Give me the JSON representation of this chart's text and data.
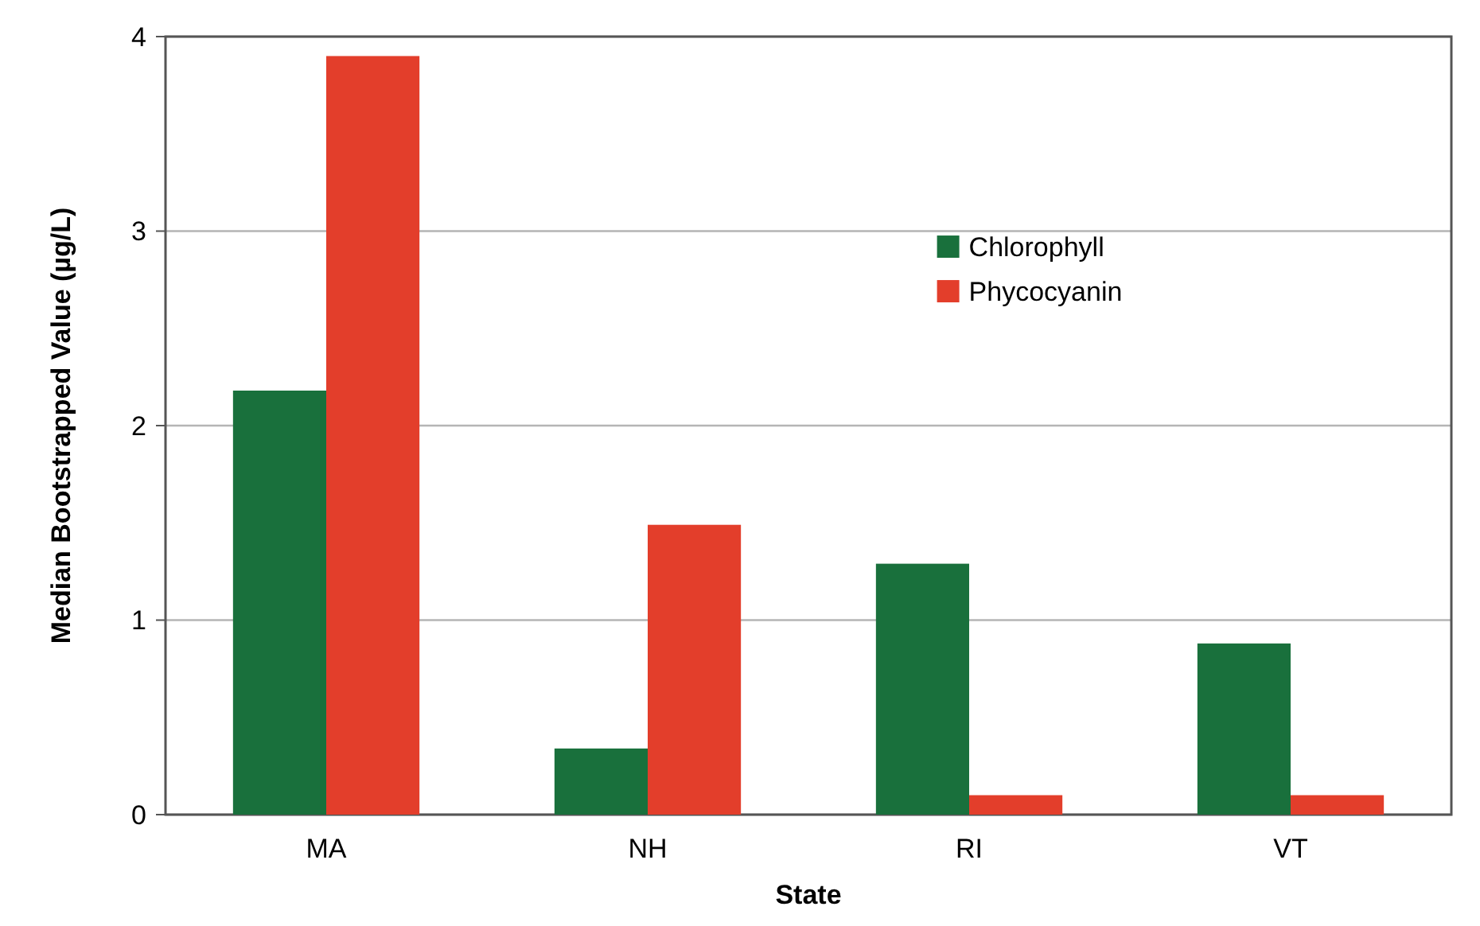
{
  "chart_data": {
    "type": "bar",
    "xlabel": "State",
    "ylabel": "Median Bootstrapped Value (µg/L)",
    "categories": [
      "MA",
      "NH",
      "RI",
      "VT"
    ],
    "series": [
      {
        "name": "Chlorophyll",
        "color": "#19703c",
        "values": [
          2.18,
          0.34,
          1.29,
          0.88
        ]
      },
      {
        "name": "Phycocyanin",
        "color": "#e33e2b",
        "values": [
          3.9,
          1.49,
          0.1,
          0.1
        ]
      }
    ],
    "ylim": [
      0,
      4
    ],
    "yticks": [
      0,
      1,
      2,
      3,
      4
    ],
    "grid": "y",
    "legend": "top right"
  }
}
